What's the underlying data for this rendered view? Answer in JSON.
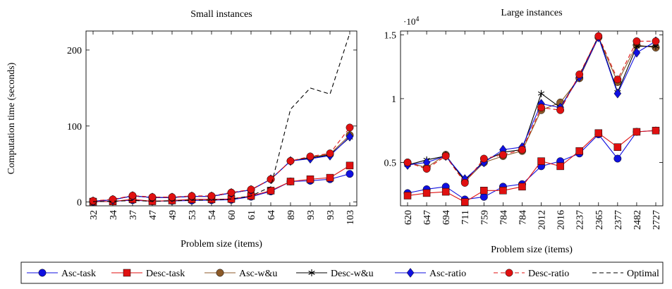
{
  "legend": {
    "items": [
      {
        "name": "Asc-task",
        "color": "#1010e0",
        "marker": "circle",
        "dash": "solid"
      },
      {
        "name": "Desc-task",
        "color": "#e01010",
        "marker": "square",
        "dash": "solid"
      },
      {
        "name": "Asc-w&u",
        "color": "#8c5a28",
        "marker": "circle",
        "dash": "solid"
      },
      {
        "name": "Desc-w&u",
        "color": "#000000",
        "marker": "star",
        "dash": "solid"
      },
      {
        "name": "Asc-ratio",
        "color": "#1010e0",
        "marker": "diamond",
        "dash": "solid"
      },
      {
        "name": "Desc-ratio",
        "color": "#e01010",
        "marker": "circle",
        "dash": "dashed"
      },
      {
        "name": "Optimal",
        "color": "#000000",
        "marker": "none",
        "dash": "dashed"
      }
    ]
  },
  "chart_data": [
    {
      "type": "line",
      "title": "Small instances",
      "xlabel": "Problem size (items)",
      "ylabel": "Computation time (seconds)",
      "categories": [
        "32",
        "34",
        "37",
        "47",
        "49",
        "53",
        "54",
        "60",
        "61",
        "64",
        "89",
        "93",
        "93",
        "103"
      ],
      "ylim": [
        -5,
        225
      ],
      "yticks": [
        0,
        100,
        200
      ],
      "yticklabels": [
        "0",
        "100",
        "200"
      ],
      "exponent_label": "",
      "grid": false,
      "series": [
        {
          "name": "Asc-task",
          "values": [
            0.5,
            0.8,
            2.5,
            1,
            1.5,
            2,
            2.5,
            3,
            7,
            14,
            27,
            28,
            30,
            37
          ]
        },
        {
          "name": "Desc-task",
          "values": [
            0.5,
            0.8,
            3.5,
            1,
            2,
            3.5,
            3.5,
            4,
            8,
            15,
            27,
            30,
            32,
            48
          ]
        },
        {
          "name": "Asc-w&u",
          "values": [
            1,
            3,
            8,
            6,
            6,
            7.5,
            7.5,
            12,
            16,
            30,
            54,
            59,
            63,
            88
          ]
        },
        {
          "name": "Desc-w&u",
          "values": [
            1,
            3,
            8,
            6,
            6,
            7.5,
            7.5,
            12,
            16,
            30,
            54,
            58,
            62,
            85
          ]
        },
        {
          "name": "Asc-ratio",
          "values": [
            1,
            3,
            8,
            6,
            6,
            7.5,
            7.5,
            12,
            16,
            30,
            54,
            57,
            61,
            86
          ]
        },
        {
          "name": "Desc-ratio",
          "values": [
            1.5,
            3.5,
            8.5,
            6.5,
            6.5,
            8,
            8,
            12.5,
            16.5,
            30,
            54,
            60,
            64,
            98
          ]
        },
        {
          "name": "Optimal",
          "values": [
            0.5,
            1,
            2,
            1,
            1.5,
            2.5,
            2.5,
            4,
            8,
            20,
            122,
            150,
            142,
            222
          ]
        }
      ]
    },
    {
      "type": "line",
      "title": "Large instances",
      "xlabel": "Problem size (items)",
      "ylabel": "",
      "categories": [
        "620",
        "647",
        "694",
        "711",
        "759",
        "784",
        "784",
        "2012",
        "2016",
        "2237",
        "2365",
        "2377",
        "2482",
        "2727"
      ],
      "ylim": [
        1600,
        15300
      ],
      "yticks": [
        5000,
        10000,
        15000
      ],
      "yticklabels": [
        "0.5",
        "1",
        "1.5"
      ],
      "exponent_label": "·10",
      "exponent_power": "4",
      "grid": false,
      "series": [
        {
          "name": "Asc-task",
          "values": [
            2600,
            2900,
            3100,
            2100,
            2300,
            3100,
            3300,
            4700,
            5100,
            5700,
            7200,
            5300,
            7400,
            7500
          ]
        },
        {
          "name": "Desc-task",
          "values": [
            2400,
            2600,
            2700,
            1900,
            2800,
            2800,
            3100,
            5100,
            4700,
            5900,
            7300,
            6200,
            7400,
            7500
          ]
        },
        {
          "name": "Asc-w&u",
          "values": [
            5000,
            4600,
            5600,
            3500,
            5000,
            5500,
            5900,
            9100,
            9700,
            11600,
            14800,
            11300,
            14200,
            14000
          ]
        },
        {
          "name": "Desc-w&u",
          "values": [
            4800,
            5200,
            5500,
            3600,
            5100,
            5800,
            6000,
            10400,
            9300,
            11800,
            14900,
            10500,
            14100,
            14100
          ]
        },
        {
          "name": "Asc-ratio",
          "values": [
            4800,
            5000,
            5500,
            3700,
            5000,
            6000,
            6200,
            9600,
            9300,
            11700,
            14800,
            10400,
            13600,
            14500
          ]
        },
        {
          "name": "Desc-ratio",
          "values": [
            5000,
            4500,
            5500,
            3400,
            5300,
            5600,
            6000,
            9300,
            9100,
            11900,
            14900,
            11500,
            14500,
            14500
          ]
        }
      ]
    }
  ]
}
